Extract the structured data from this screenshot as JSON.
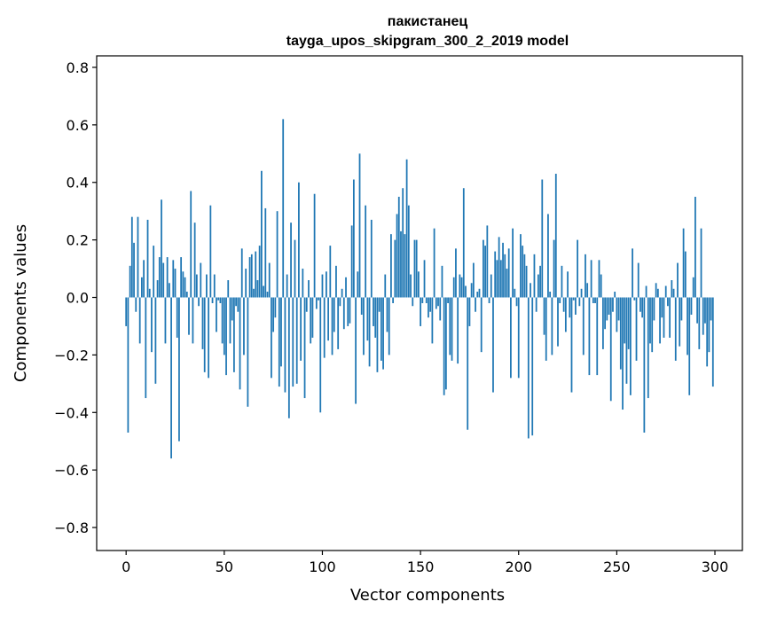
{
  "chart_data": {
    "type": "bar",
    "title": [
      "пакистанец",
      "tayga_upos_skipgram_300_2_2019 model"
    ],
    "xlabel": "Vector components",
    "ylabel": "Components values",
    "xlim": [
      -15,
      314
    ],
    "ylim": [
      -0.88,
      0.84
    ],
    "xticks": [
      0,
      50,
      100,
      150,
      200,
      250,
      300
    ],
    "yticks": [
      -0.8,
      -0.6,
      -0.4,
      -0.2,
      0.0,
      0.2,
      0.4,
      0.6,
      0.8
    ],
    "ytick_labels": [
      "−0.8",
      "−0.6",
      "−0.4",
      "−0.2",
      "0.0",
      "0.2",
      "0.4",
      "0.6",
      "0.8"
    ],
    "bar_color": "#1f77b4",
    "grid": false,
    "legend": false,
    "values": [
      -0.1,
      -0.47,
      0.11,
      0.28,
      0.19,
      -0.05,
      0.28,
      -0.16,
      0.07,
      0.13,
      -0.35,
      0.27,
      0.03,
      -0.19,
      0.18,
      -0.3,
      0.06,
      0.14,
      0.34,
      0.12,
      -0.16,
      0.14,
      0.05,
      -0.56,
      0.13,
      0.1,
      -0.14,
      -0.5,
      0.14,
      0.09,
      0.07,
      0.02,
      -0.13,
      0.37,
      -0.16,
      0.26,
      0.08,
      -0.03,
      0.12,
      -0.18,
      -0.26,
      0.08,
      -0.28,
      0.32,
      -0.02,
      0.08,
      -0.12,
      -0.01,
      -0.02,
      -0.16,
      -0.2,
      -0.27,
      0.06,
      -0.16,
      -0.08,
      -0.26,
      -0.03,
      -0.05,
      -0.32,
      0.17,
      -0.2,
      0.1,
      -0.38,
      0.14,
      0.15,
      0.03,
      0.16,
      0.06,
      0.18,
      0.44,
      0.04,
      0.31,
      0.02,
      0.12,
      -0.28,
      -0.12,
      -0.07,
      0.3,
      -0.31,
      -0.24,
      0.62,
      -0.33,
      0.08,
      -0.42,
      0.26,
      -0.31,
      0.2,
      -0.3,
      0.4,
      -0.22,
      0.1,
      -0.35,
      -0.05,
      0.06,
      -0.16,
      -0.14,
      0.36,
      -0.04,
      -0.01,
      -0.4,
      0.08,
      -0.21,
      0.09,
      -0.15,
      0.18,
      -0.2,
      -0.12,
      0.11,
      -0.18,
      -0.03,
      0.03,
      -0.11,
      0.07,
      -0.1,
      -0.09,
      0.25,
      0.41,
      -0.37,
      0.09,
      0.5,
      -0.06,
      -0.2,
      0.32,
      -0.15,
      -0.24,
      0.27,
      -0.1,
      -0.14,
      -0.26,
      -0.05,
      -0.22,
      -0.25,
      0.08,
      -0.12,
      -0.2,
      0.22,
      -0.02,
      0.2,
      0.29,
      0.35,
      0.23,
      0.38,
      0.22,
      0.48,
      0.32,
      0.08,
      -0.03,
      0.2,
      0.2,
      0.09,
      -0.1,
      -0.02,
      0.13,
      -0.02,
      -0.07,
      -0.05,
      -0.16,
      0.24,
      -0.04,
      -0.03,
      -0.08,
      0.11,
      -0.34,
      -0.32,
      -0.02,
      -0.2,
      -0.22,
      0.07,
      0.17,
      -0.23,
      0.08,
      0.07,
      0.38,
      0.04,
      -0.46,
      -0.1,
      0.05,
      0.12,
      -0.05,
      0.02,
      0.03,
      -0.19,
      0.2,
      0.18,
      0.25,
      -0.02,
      0.08,
      -0.33,
      0.16,
      0.13,
      0.21,
      0.13,
      0.19,
      0.15,
      0.1,
      0.17,
      -0.28,
      0.24,
      0.03,
      -0.03,
      -0.28,
      0.22,
      0.18,
      0.15,
      0.11,
      -0.49,
      0.05,
      -0.48,
      0.15,
      -0.05,
      0.08,
      0.11,
      0.41,
      -0.13,
      -0.22,
      0.29,
      0.02,
      -0.2,
      0.2,
      0.43,
      -0.17,
      -0.02,
      0.11,
      -0.05,
      -0.12,
      0.09,
      -0.07,
      -0.33,
      -0.01,
      -0.06,
      0.2,
      -0.03,
      0.03,
      -0.2,
      0.15,
      0.05,
      -0.27,
      0.13,
      -0.02,
      -0.02,
      -0.27,
      0.13,
      0.08,
      -0.18,
      -0.11,
      -0.08,
      -0.06,
      -0.36,
      -0.05,
      0.02,
      -0.12,
      -0.08,
      -0.25,
      -0.39,
      -0.16,
      -0.3,
      -0.18,
      -0.34,
      0.17,
      -0.01,
      -0.22,
      0.12,
      -0.05,
      -0.07,
      -0.47,
      0.04,
      -0.35,
      -0.16,
      -0.19,
      -0.08,
      0.05,
      0.03,
      -0.16,
      -0.07,
      -0.14,
      0.04,
      -0.03,
      -0.14,
      0.06,
      0.03,
      -0.22,
      0.12,
      -0.17,
      -0.08,
      0.24,
      0.16,
      -0.2,
      -0.34,
      -0.06,
      0.07,
      0.35,
      -0.09,
      -0.18,
      0.24,
      -0.13,
      -0.09,
      -0.24,
      -0.19,
      -0.08,
      -0.31
    ]
  }
}
